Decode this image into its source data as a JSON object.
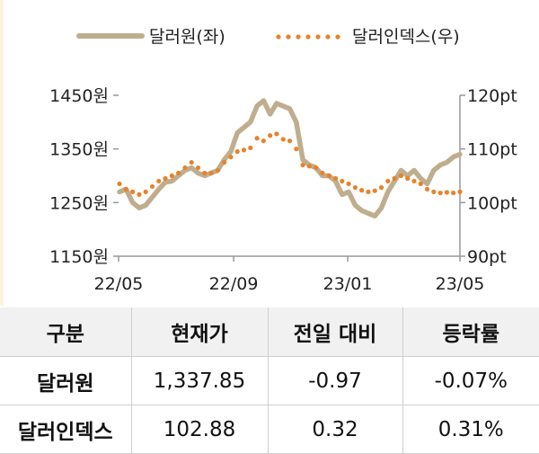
{
  "chart_data": {
    "type": "line",
    "x_ticks": [
      "22/05",
      "22/09",
      "23/01",
      "23/05"
    ],
    "y_left": {
      "ticks": [
        "1450원",
        "1350원",
        "1250원",
        "1150원"
      ],
      "range": [
        1150,
        1450
      ]
    },
    "y_right": {
      "ticks": [
        "120pt",
        "110pt",
        "100pt",
        "90pt"
      ],
      "range": [
        90,
        120
      ]
    },
    "legend_position": "top",
    "series": [
      {
        "name": "달러원(좌)",
        "axis": "left",
        "style": "solid",
        "color": "#bfae8e",
        "x": [
          "22/05/02",
          "22/05/09",
          "22/05/16",
          "22/05/23",
          "22/05/30",
          "22/06/06",
          "22/06/13",
          "22/06/20",
          "22/06/27",
          "22/07/04",
          "22/07/11",
          "22/07/18",
          "22/07/25",
          "22/08/01",
          "22/08/08",
          "22/08/15",
          "22/08/22",
          "22/08/29",
          "22/09/05",
          "22/09/12",
          "22/09/19",
          "22/09/26",
          "22/10/03",
          "22/10/10",
          "22/10/17",
          "22/10/24",
          "22/10/31",
          "22/11/07",
          "22/11/14",
          "22/11/21",
          "22/11/28",
          "22/12/05",
          "22/12/12",
          "22/12/19",
          "22/12/26",
          "23/01/02",
          "23/01/09",
          "23/01/16",
          "23/01/23",
          "23/01/30",
          "23/02/06",
          "23/02/13",
          "23/02/20",
          "23/02/27",
          "23/03/06",
          "23/03/13",
          "23/03/20",
          "23/03/27",
          "23/04/03",
          "23/04/10",
          "23/04/17",
          "23/04/24",
          "23/05/01"
        ],
        "values": [
          1270,
          1275,
          1250,
          1240,
          1245,
          1260,
          1275,
          1288,
          1290,
          1300,
          1310,
          1315,
          1305,
          1300,
          1305,
          1310,
          1330,
          1345,
          1380,
          1390,
          1400,
          1430,
          1440,
          1415,
          1435,
          1430,
          1425,
          1400,
          1330,
          1320,
          1315,
          1300,
          1300,
          1290,
          1265,
          1270,
          1245,
          1235,
          1230,
          1225,
          1240,
          1270,
          1290,
          1310,
          1300,
          1310,
          1295,
          1285,
          1310,
          1320,
          1325,
          1335,
          1340
        ]
      },
      {
        "name": "달러인덱스(우)",
        "axis": "right",
        "style": "dotted",
        "color": "#e8822a",
        "x": [
          "22/05/02",
          "22/05/09",
          "22/05/16",
          "22/05/23",
          "22/05/30",
          "22/06/06",
          "22/06/13",
          "22/06/20",
          "22/06/27",
          "22/07/04",
          "22/07/11",
          "22/07/18",
          "22/07/25",
          "22/08/01",
          "22/08/08",
          "22/08/15",
          "22/08/22",
          "22/08/29",
          "22/09/05",
          "22/09/12",
          "22/09/19",
          "22/09/26",
          "22/10/03",
          "22/10/10",
          "22/10/17",
          "22/10/24",
          "22/10/31",
          "22/11/07",
          "22/11/14",
          "22/11/21",
          "22/11/28",
          "22/12/05",
          "22/12/12",
          "22/12/19",
          "22/12/26",
          "23/01/02",
          "23/01/09",
          "23/01/16",
          "23/01/23",
          "23/01/30",
          "23/02/06",
          "23/02/13",
          "23/02/20",
          "23/02/27",
          "23/03/06",
          "23/03/13",
          "23/03/20",
          "23/03/27",
          "23/04/03",
          "23/04/10",
          "23/04/17",
          "23/04/24",
          "23/05/01"
        ],
        "values": [
          103.5,
          102.5,
          102.0,
          101.5,
          102.0,
          103.0,
          104.0,
          104.5,
          105.0,
          105.5,
          106.5,
          107.5,
          106.5,
          105.5,
          105.5,
          106.0,
          107.5,
          108.5,
          109.5,
          109.8,
          110.2,
          112.0,
          111.5,
          112.5,
          112.8,
          111.8,
          111.5,
          110.0,
          107.0,
          106.8,
          106.5,
          105.5,
          105.0,
          104.5,
          104.0,
          103.5,
          102.8,
          102.3,
          102.0,
          102.2,
          102.8,
          104.0,
          104.5,
          105.0,
          104.5,
          104.0,
          103.5,
          102.5,
          102.0,
          101.8,
          101.9,
          101.8,
          102.0
        ]
      }
    ]
  },
  "table": {
    "headers": [
      "구분",
      "현재가",
      "전일 대비",
      "등락률"
    ],
    "rows": [
      [
        "달러원",
        "1,337.85",
        "-0.97",
        "-0.07%"
      ],
      [
        "달러인덱스",
        "102.88",
        "0.32",
        "0.31%"
      ]
    ]
  }
}
